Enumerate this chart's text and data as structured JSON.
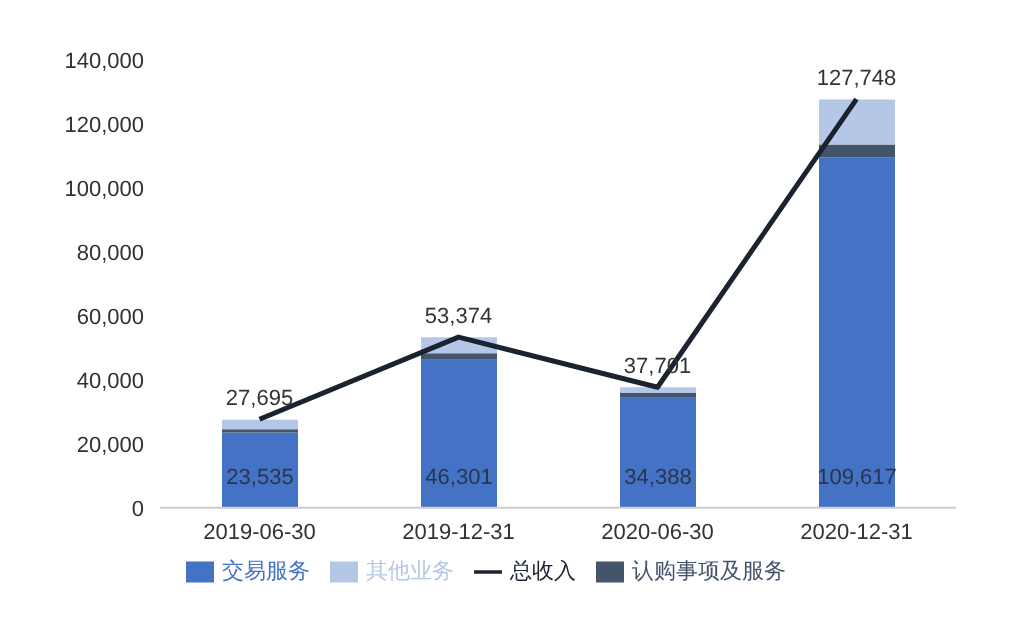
{
  "chart_data": {
    "type": "bar",
    "stacked": true,
    "categories": [
      "2019-06-30",
      "2019-12-31",
      "2020-06-30",
      "2020-12-31"
    ],
    "series": [
      {
        "name": "交易服务",
        "color": "#4472c4",
        "values": [
          23535,
          46301,
          34388,
          109617
        ],
        "value_labels": [
          "23,535",
          "46,301",
          "34,388",
          "109,617"
        ]
      },
      {
        "name": "认购事项及服务",
        "color": "#44546a",
        "values": [
          1000,
          2000,
          1500,
          4000
        ]
      },
      {
        "name": "其他业务",
        "color": "#b4c7e7",
        "values": [
          3000,
          5000,
          1800,
          14000
        ]
      },
      {
        "name": "总收入",
        "type": "line",
        "color": "#1b2230",
        "values": [
          27695,
          53374,
          37701,
          127748
        ],
        "value_labels": [
          "27,695",
          "53,374",
          "37,701",
          "127,748"
        ],
        "marker": "none"
      }
    ],
    "ylim": [
      0,
      140000
    ],
    "yticks": [
      {
        "value": 0,
        "label": "0"
      },
      {
        "value": 20000,
        "label": "20,000"
      },
      {
        "value": 40000,
        "label": "40,000"
      },
      {
        "value": 60000,
        "label": "60,000"
      },
      {
        "value": 80000,
        "label": "80,000"
      },
      {
        "value": 100000,
        "label": "100,000"
      },
      {
        "value": 120000,
        "label": "120,000"
      },
      {
        "value": 140000,
        "label": "140,000"
      }
    ],
    "grid": false,
    "legend": "bottom"
  }
}
